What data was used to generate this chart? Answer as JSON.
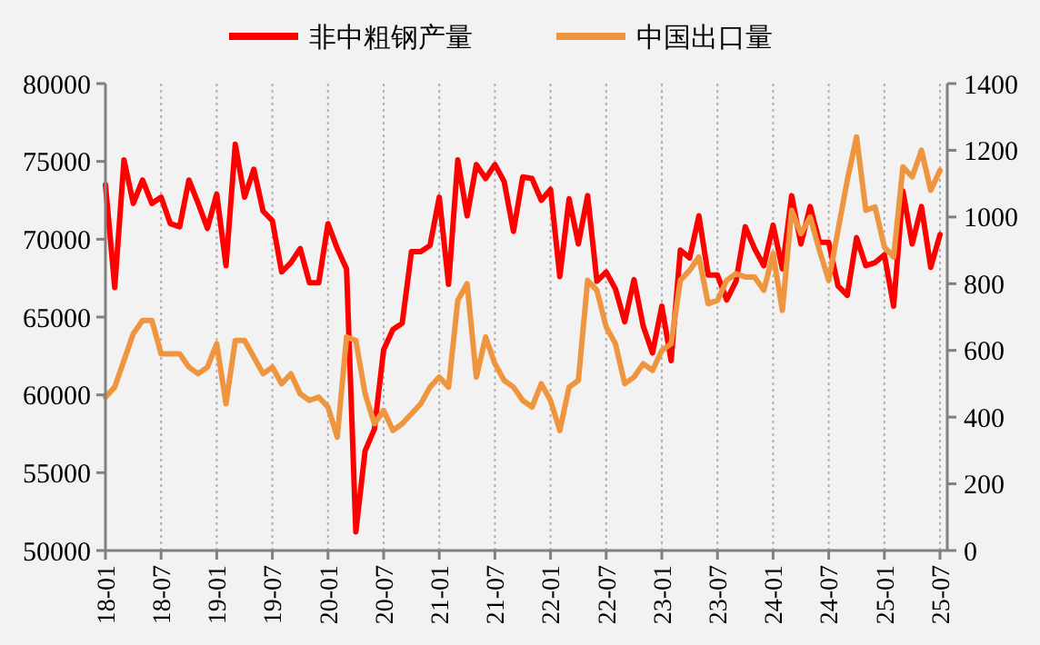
{
  "chart_data": {
    "type": "line",
    "categories": [
      "18-01",
      null,
      null,
      null,
      null,
      null,
      "18-07",
      null,
      null,
      null,
      null,
      null,
      "19-01",
      null,
      null,
      null,
      null,
      null,
      "19-07",
      null,
      null,
      null,
      null,
      null,
      "20-01",
      null,
      null,
      null,
      null,
      null,
      "20-07",
      null,
      null,
      null,
      null,
      null,
      "21-01",
      null,
      null,
      null,
      null,
      null,
      "21-07",
      null,
      null,
      null,
      null,
      null,
      "22-01",
      null,
      null,
      null,
      null,
      null,
      "22-07",
      null,
      null,
      null,
      null,
      null,
      "23-01",
      null,
      null,
      null,
      null,
      null,
      "23-07",
      null,
      null,
      null,
      null,
      null,
      "24-01",
      null,
      null,
      null,
      null,
      null,
      "24-07",
      null,
      null,
      null,
      null,
      null,
      "25-01",
      null,
      null,
      null,
      null,
      null,
      "25-07"
    ],
    "series": [
      {
        "name": "非中粗钢产量",
        "color": "#ff0000",
        "values": [
          73500,
          66900,
          75100,
          72300,
          73800,
          72300,
          72700,
          71000,
          70800,
          73800,
          72300,
          70700,
          72900,
          68300,
          76100,
          72700,
          74500,
          71800,
          71200,
          67900,
          68500,
          69400,
          67200,
          67200,
          71000,
          69400,
          68100,
          51200,
          56400,
          57800,
          62900,
          64200,
          64600,
          69200,
          69200,
          69600,
          72700,
          67100,
          75100,
          71500,
          74800,
          73900,
          74800,
          73700,
          70500,
          74000,
          73900,
          72500,
          73200,
          67600,
          72600,
          69700,
          72800,
          67300,
          67900,
          66800,
          64700,
          67400,
          64400,
          62700,
          65700,
          62200,
          69300,
          68800,
          71500,
          67700,
          67700,
          66100,
          67300,
          70800,
          69400,
          68300,
          70900,
          68100,
          72800,
          69700,
          72100,
          69800,
          69800,
          67000,
          66400,
          70100,
          68300,
          68500,
          69000,
          65700,
          73100,
          69700,
          72100,
          68200,
          70300
        ]
      },
      {
        "name": "中国出口量",
        "color": "#f0953f",
        "axis": "y2",
        "values": [
          460,
          490,
          570,
          650,
          690,
          690,
          590,
          590,
          590,
          550,
          530,
          550,
          620,
          440,
          630,
          630,
          580,
          530,
          550,
          500,
          530,
          470,
          450,
          460,
          430,
          340,
          640,
          630,
          470,
          380,
          420,
          360,
          380,
          410,
          440,
          490,
          520,
          490,
          750,
          800,
          520,
          640,
          560,
          510,
          490,
          450,
          430,
          500,
          450,
          360,
          490,
          510,
          810,
          780,
          670,
          620,
          500,
          520,
          560,
          540,
          600,
          620,
          810,
          840,
          880,
          740,
          750,
          810,
          830,
          820,
          820,
          780,
          890,
          720,
          1020,
          950,
          1000,
          900,
          810,
          960,
          1110,
          1240,
          1020,
          1030,
          910,
          880,
          1150,
          1120,
          1200,
          1080,
          1140
        ]
      }
    ],
    "ylim": [
      50000,
      80000
    ],
    "yticks": [
      50000,
      55000,
      60000,
      65000,
      70000,
      75000,
      80000
    ],
    "y2lim": [
      0,
      1400
    ],
    "y2ticks": [
      0,
      200,
      400,
      600,
      800,
      1000,
      1200,
      1400
    ],
    "grid": "x",
    "legend": "top",
    "line_style": "solid",
    "marker": "none"
  }
}
